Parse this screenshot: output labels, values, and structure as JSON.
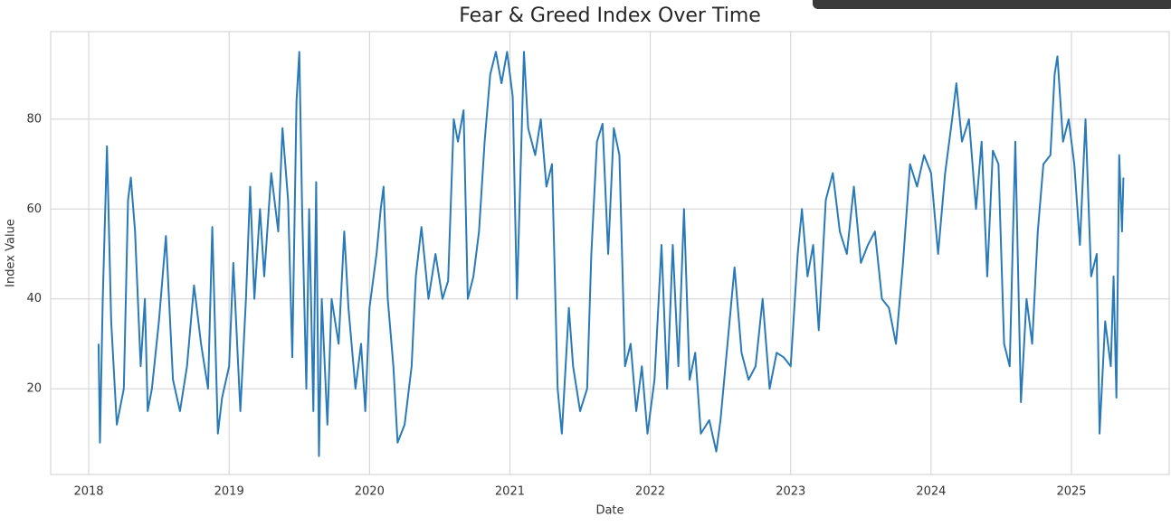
{
  "chart_data": {
    "type": "line",
    "title": "Fear & Greed Index Over Time",
    "x_label": "Date",
    "y_label": "Index Value",
    "x": [
      2018.07,
      2018.08,
      2018.1,
      2018.13,
      2018.16,
      2018.2,
      2018.25,
      2018.28,
      2018.3,
      2018.33,
      2018.37,
      2018.4,
      2018.42,
      2018.45,
      2018.5,
      2018.55,
      2018.6,
      2018.65,
      2018.7,
      2018.75,
      2018.8,
      2018.85,
      2018.88,
      2018.92,
      2018.95,
      2019.0,
      2019.03,
      2019.08,
      2019.12,
      2019.15,
      2019.18,
      2019.22,
      2019.25,
      2019.3,
      2019.35,
      2019.38,
      2019.42,
      2019.45,
      2019.48,
      2019.5,
      2019.52,
      2019.55,
      2019.57,
      2019.6,
      2019.62,
      2019.64,
      2019.66,
      2019.7,
      2019.73,
      2019.78,
      2019.82,
      2019.85,
      2019.9,
      2019.94,
      2019.97,
      2020.0,
      2020.05,
      2020.08,
      2020.1,
      2020.13,
      2020.17,
      2020.2,
      2020.25,
      2020.3,
      2020.33,
      2020.37,
      2020.42,
      2020.47,
      2020.52,
      2020.56,
      2020.6,
      2020.63,
      2020.67,
      2020.7,
      2020.74,
      2020.78,
      2020.82,
      2020.86,
      2020.9,
      2020.94,
      2020.98,
      2021.02,
      2021.05,
      2021.1,
      2021.13,
      2021.18,
      2021.22,
      2021.26,
      2021.3,
      2021.34,
      2021.37,
      2021.42,
      2021.45,
      2021.5,
      2021.55,
      2021.58,
      2021.62,
      2021.66,
      2021.7,
      2021.74,
      2021.78,
      2021.82,
      2021.86,
      2021.9,
      2021.94,
      2021.98,
      2022.03,
      2022.08,
      2022.12,
      2022.16,
      2022.2,
      2022.24,
      2022.28,
      2022.32,
      2022.36,
      2022.42,
      2022.47,
      2022.5,
      2022.55,
      2022.6,
      2022.65,
      2022.7,
      2022.75,
      2022.8,
      2022.85,
      2022.9,
      2022.95,
      2023.0,
      2023.05,
      2023.08,
      2023.12,
      2023.16,
      2023.2,
      2023.25,
      2023.3,
      2023.35,
      2023.4,
      2023.45,
      2023.5,
      2023.55,
      2023.6,
      2023.65,
      2023.7,
      2023.75,
      2023.8,
      2023.85,
      2023.9,
      2023.95,
      2024.0,
      2024.05,
      2024.1,
      2024.15,
      2024.18,
      2024.22,
      2024.27,
      2024.32,
      2024.36,
      2024.4,
      2024.44,
      2024.48,
      2024.52,
      2024.56,
      2024.6,
      2024.64,
      2024.68,
      2024.72,
      2024.76,
      2024.8,
      2024.85,
      2024.88,
      2024.9,
      2024.94,
      2024.98,
      2025.02,
      2025.06,
      2025.1,
      2025.14,
      2025.18,
      2025.2,
      2025.24,
      2025.28,
      2025.3,
      2025.32,
      2025.34,
      2025.36,
      2025.37
    ],
    "series": [
      {
        "name": "Index Value",
        "color": "#2a7ab8",
        "values": [
          30,
          8,
          40,
          74,
          35,
          12,
          20,
          62,
          67,
          55,
          25,
          40,
          15,
          20,
          35,
          54,
          22,
          15,
          25,
          43,
          30,
          20,
          56,
          10,
          18,
          25,
          48,
          15,
          40,
          65,
          40,
          60,
          45,
          68,
          55,
          78,
          62,
          27,
          84,
          95,
          60,
          20,
          60,
          15,
          66,
          5,
          40,
          12,
          40,
          30,
          55,
          38,
          20,
          30,
          15,
          38,
          50,
          60,
          65,
          40,
          25,
          8,
          12,
          25,
          45,
          56,
          40,
          50,
          40,
          44,
          80,
          75,
          82,
          40,
          45,
          55,
          75,
          90,
          95,
          88,
          95,
          85,
          40,
          95,
          78,
          72,
          80,
          65,
          70,
          20,
          10,
          38,
          25,
          15,
          20,
          50,
          75,
          79,
          50,
          78,
          72,
          25,
          30,
          15,
          25,
          10,
          22,
          52,
          20,
          52,
          25,
          60,
          22,
          28,
          10,
          13,
          6,
          13,
          30,
          47,
          28,
          22,
          25,
          40,
          20,
          28,
          27,
          25,
          50,
          60,
          45,
          52,
          33,
          62,
          68,
          55,
          50,
          65,
          48,
          52,
          55,
          40,
          38,
          30,
          48,
          70,
          65,
          72,
          68,
          50,
          68,
          80,
          88,
          75,
          80,
          60,
          75,
          45,
          73,
          70,
          30,
          25,
          75,
          17,
          40,
          30,
          55,
          70,
          72,
          90,
          94,
          75,
          80,
          70,
          52,
          80,
          45,
          50,
          10,
          35,
          25,
          45,
          18,
          72,
          55,
          67
        ]
      }
    ],
    "xlim": [
      2017.729,
      2025.696
    ],
    "xticks": [
      2018,
      2019,
      2020,
      2021,
      2022,
      2023,
      2024,
      2025
    ],
    "ylim": [
      0.9,
      99.5
    ],
    "yticks": [
      20,
      40,
      60,
      80
    ],
    "grid": true
  }
}
